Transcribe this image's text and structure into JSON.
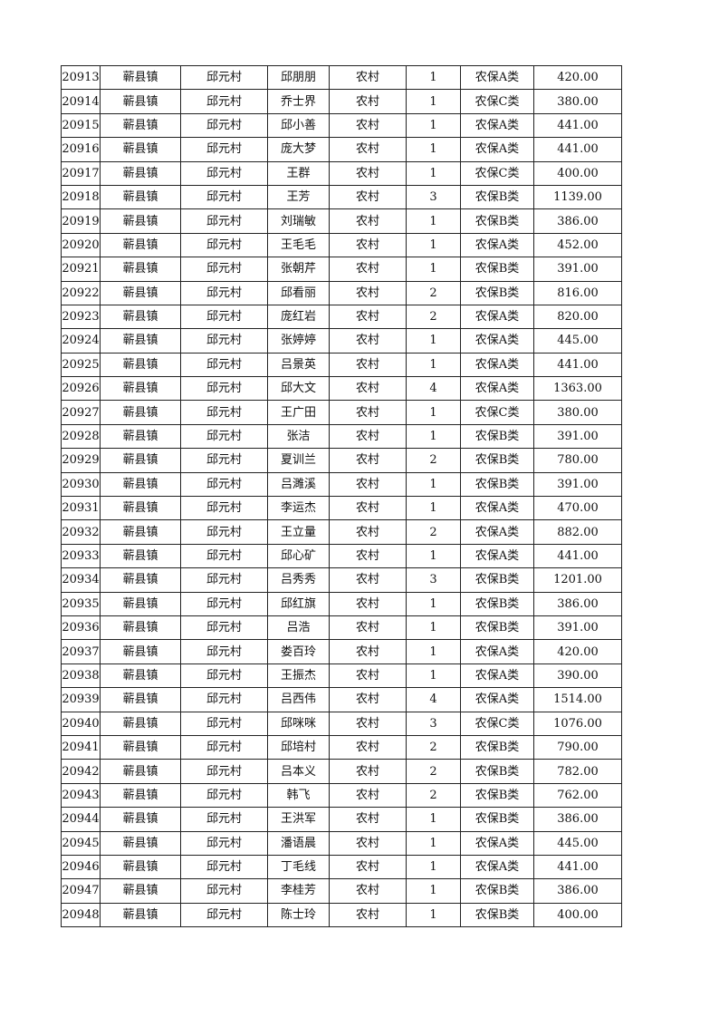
{
  "table": {
    "rows": [
      [
        "20913",
        "蕲县镇",
        "邱元村",
        "邱朋朋",
        "农村",
        "1",
        "农保A类",
        "420.00"
      ],
      [
        "20914",
        "蕲县镇",
        "邱元村",
        "乔士界",
        "农村",
        "1",
        "农保C类",
        "380.00"
      ],
      [
        "20915",
        "蕲县镇",
        "邱元村",
        "邱小善",
        "农村",
        "1",
        "农保A类",
        "441.00"
      ],
      [
        "20916",
        "蕲县镇",
        "邱元村",
        "庞大梦",
        "农村",
        "1",
        "农保A类",
        "441.00"
      ],
      [
        "20917",
        "蕲县镇",
        "邱元村",
        "王群",
        "农村",
        "1",
        "农保C类",
        "400.00"
      ],
      [
        "20918",
        "蕲县镇",
        "邱元村",
        "王芳",
        "农村",
        "3",
        "农保B类",
        "1139.00"
      ],
      [
        "20919",
        "蕲县镇",
        "邱元村",
        "刘瑞敏",
        "农村",
        "1",
        "农保B类",
        "386.00"
      ],
      [
        "20920",
        "蕲县镇",
        "邱元村",
        "王毛毛",
        "农村",
        "1",
        "农保A类",
        "452.00"
      ],
      [
        "20921",
        "蕲县镇",
        "邱元村",
        "张朝芹",
        "农村",
        "1",
        "农保B类",
        "391.00"
      ],
      [
        "20922",
        "蕲县镇",
        "邱元村",
        "邱看丽",
        "农村",
        "2",
        "农保B类",
        "816.00"
      ],
      [
        "20923",
        "蕲县镇",
        "邱元村",
        "庞红岩",
        "农村",
        "2",
        "农保A类",
        "820.00"
      ],
      [
        "20924",
        "蕲县镇",
        "邱元村",
        "张婷婷",
        "农村",
        "1",
        "农保A类",
        "445.00"
      ],
      [
        "20925",
        "蕲县镇",
        "邱元村",
        "吕景英",
        "农村",
        "1",
        "农保A类",
        "441.00"
      ],
      [
        "20926",
        "蕲县镇",
        "邱元村",
        "邱大文",
        "农村",
        "4",
        "农保A类",
        "1363.00"
      ],
      [
        "20927",
        "蕲县镇",
        "邱元村",
        "王广田",
        "农村",
        "1",
        "农保C类",
        "380.00"
      ],
      [
        "20928",
        "蕲县镇",
        "邱元村",
        "张洁",
        "农村",
        "1",
        "农保B类",
        "391.00"
      ],
      [
        "20929",
        "蕲县镇",
        "邱元村",
        "夏训兰",
        "农村",
        "2",
        "农保B类",
        "780.00"
      ],
      [
        "20930",
        "蕲县镇",
        "邱元村",
        "吕濉溪",
        "农村",
        "1",
        "农保B类",
        "391.00"
      ],
      [
        "20931",
        "蕲县镇",
        "邱元村",
        "李运杰",
        "农村",
        "1",
        "农保A类",
        "470.00"
      ],
      [
        "20932",
        "蕲县镇",
        "邱元村",
        "王立量",
        "农村",
        "2",
        "农保A类",
        "882.00"
      ],
      [
        "20933",
        "蕲县镇",
        "邱元村",
        "邱心矿",
        "农村",
        "1",
        "农保A类",
        "441.00"
      ],
      [
        "20934",
        "蕲县镇",
        "邱元村",
        "吕秀秀",
        "农村",
        "3",
        "农保B类",
        "1201.00"
      ],
      [
        "20935",
        "蕲县镇",
        "邱元村",
        "邱红旗",
        "农村",
        "1",
        "农保B类",
        "386.00"
      ],
      [
        "20936",
        "蕲县镇",
        "邱元村",
        "吕浩",
        "农村",
        "1",
        "农保B类",
        "391.00"
      ],
      [
        "20937",
        "蕲县镇",
        "邱元村",
        "娄百玲",
        "农村",
        "1",
        "农保A类",
        "420.00"
      ],
      [
        "20938",
        "蕲县镇",
        "邱元村",
        "王振杰",
        "农村",
        "1",
        "农保A类",
        "390.00"
      ],
      [
        "20939",
        "蕲县镇",
        "邱元村",
        "吕西伟",
        "农村",
        "4",
        "农保A类",
        "1514.00"
      ],
      [
        "20940",
        "蕲县镇",
        "邱元村",
        "邱咪咪",
        "农村",
        "3",
        "农保C类",
        "1076.00"
      ],
      [
        "20941",
        "蕲县镇",
        "邱元村",
        "邱培村",
        "农村",
        "2",
        "农保B类",
        "790.00"
      ],
      [
        "20942",
        "蕲县镇",
        "邱元村",
        "吕本义",
        "农村",
        "2",
        "农保B类",
        "782.00"
      ],
      [
        "20943",
        "蕲县镇",
        "邱元村",
        "韩飞",
        "农村",
        "2",
        "农保B类",
        "762.00"
      ],
      [
        "20944",
        "蕲县镇",
        "邱元村",
        "王洪军",
        "农村",
        "1",
        "农保B类",
        "386.00"
      ],
      [
        "20945",
        "蕲县镇",
        "邱元村",
        "潘语晨",
        "农村",
        "1",
        "农保A类",
        "445.00"
      ],
      [
        "20946",
        "蕲县镇",
        "邱元村",
        "丁毛线",
        "农村",
        "1",
        "农保A类",
        "441.00"
      ],
      [
        "20947",
        "蕲县镇",
        "邱元村",
        "李桂芳",
        "农村",
        "1",
        "农保B类",
        "386.00"
      ],
      [
        "20948",
        "蕲县镇",
        "邱元村",
        "陈士玲",
        "农村",
        "1",
        "农保B类",
        "400.00"
      ]
    ]
  }
}
